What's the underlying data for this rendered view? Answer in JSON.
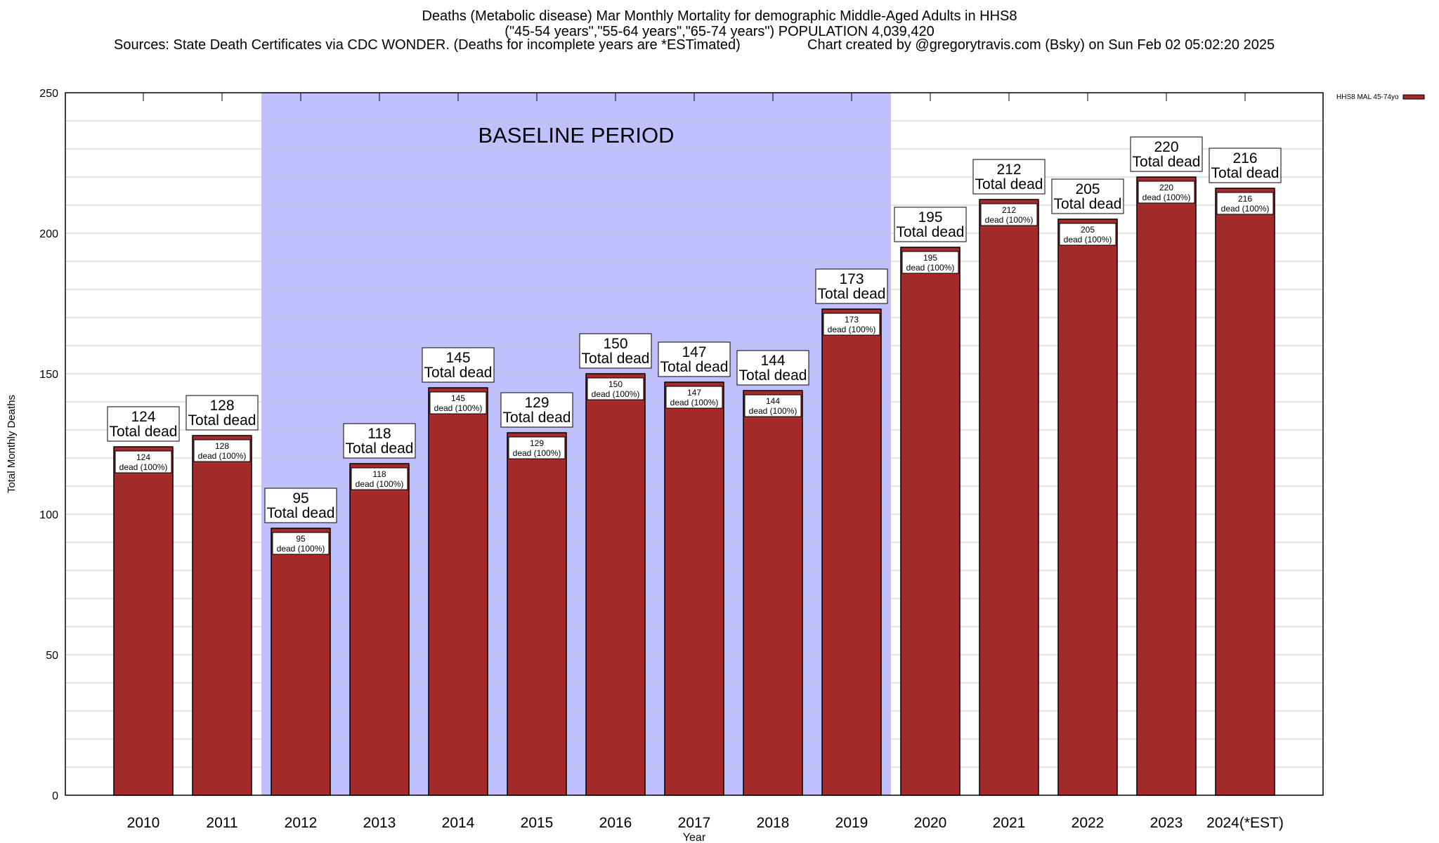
{
  "chart_data": {
    "type": "bar",
    "title": "Deaths (Metabolic disease) Mar Monthly Mortality for demographic Middle-Aged Adults in HHS8",
    "subtitle": "(\"45-54 years\",\"55-64 years\",\"65-74 years\") POPULATION 4,039,420",
    "sources": "Sources: State Death Certificates via CDC WONDER. (Deaths for incomplete years are *ESTimated)",
    "credit": "Chart created by @gregorytravis.com (Bsky) on Sun Feb 02 05:02:20 2025",
    "xlabel": "Year",
    "ylabel": "Total Monthly Deaths",
    "ylim": [
      0,
      250
    ],
    "yticks": [
      0,
      50,
      100,
      150,
      200,
      250
    ],
    "grid_step": 10,
    "categories": [
      "2010",
      "2011",
      "2012",
      "2013",
      "2014",
      "2015",
      "2016",
      "2017",
      "2018",
      "2019",
      "2020",
      "2021",
      "2022",
      "2023",
      "2024(*EST)"
    ],
    "series": [
      {
        "name": "HHS8 MAL 45-74yo",
        "color": "#a52a2a",
        "values": [
          124,
          128,
          95,
          118,
          145,
          129,
          150,
          147,
          144,
          173,
          195,
          212,
          205,
          220,
          216
        ]
      }
    ],
    "top_label_suffix": "Total dead",
    "inner_label_suffix": "dead (100%)",
    "baseline": {
      "label": "BASELINE PERIOD",
      "from": "2012",
      "to": "2019",
      "color": "#c0c0ff"
    },
    "legend_position": "top-right"
  }
}
